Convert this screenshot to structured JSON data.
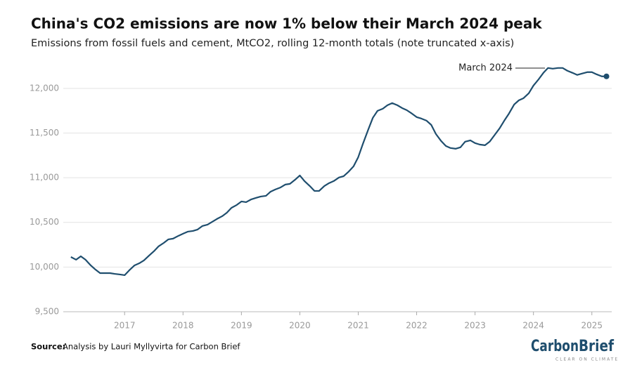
{
  "chart_data": {
    "type": "line",
    "title": "China's CO2 emissions are now 1% below their March 2024 peak",
    "subtitle": "Emissions from fossil fuels and cement, MtCO2, rolling 12-month totals (note truncated x-axis)",
    "annotation": "March 2024",
    "source_label": "Source:",
    "source_text": "Analysis by Lauri Myllyvirta for Carbon Brief",
    "logo": {
      "word1": "Carbon",
      "word2": "Brief",
      "tagline": "CLEAR ON CLIMATE"
    },
    "color": "#1f4e6e",
    "grid": true,
    "x": [
      2016.08,
      2016.17,
      2016.25,
      2016.33,
      2016.42,
      2016.5,
      2016.58,
      2016.67,
      2016.75,
      2016.83,
      2016.92,
      2017,
      2017.08,
      2017.17,
      2017.25,
      2017.33,
      2017.42,
      2017.5,
      2017.58,
      2017.67,
      2017.75,
      2017.83,
      2017.92,
      2018,
      2018.08,
      2018.17,
      2018.25,
      2018.33,
      2018.42,
      2018.5,
      2018.58,
      2018.67,
      2018.75,
      2018.83,
      2018.92,
      2019,
      2019.08,
      2019.17,
      2019.25,
      2019.33,
      2019.42,
      2019.5,
      2019.58,
      2019.67,
      2019.75,
      2019.83,
      2019.92,
      2020,
      2020.08,
      2020.17,
      2020.25,
      2020.33,
      2020.42,
      2020.5,
      2020.58,
      2020.67,
      2020.75,
      2020.83,
      2020.92,
      2021,
      2021.08,
      2021.17,
      2021.25,
      2021.33,
      2021.42,
      2021.5,
      2021.58,
      2021.67,
      2021.75,
      2021.83,
      2021.92,
      2022,
      2022.08,
      2022.17,
      2022.25,
      2022.33,
      2022.42,
      2022.5,
      2022.58,
      2022.67,
      2022.75,
      2022.83,
      2022.92,
      2023,
      2023.08,
      2023.17,
      2023.25,
      2023.33,
      2023.42,
      2023.5,
      2023.58,
      2023.67,
      2023.75,
      2023.83,
      2023.92,
      2024,
      2024.08,
      2024.17,
      2024.25,
      2024.33,
      2024.42,
      2024.5,
      2024.58,
      2024.67,
      2024.75,
      2024.83,
      2024.92,
      2025,
      2025.08,
      2025.17,
      2025.25
    ],
    "values": [
      10113,
      10082,
      10121,
      10082,
      10019,
      9972,
      9932,
      9932,
      9932,
      9924,
      9917,
      9909,
      9964,
      10019,
      10042,
      10074,
      10129,
      10176,
      10231,
      10270,
      10310,
      10318,
      10349,
      10373,
      10396,
      10404,
      10420,
      10459,
      10475,
      10506,
      10538,
      10569,
      10608,
      10663,
      10695,
      10734,
      10726,
      10758,
      10774,
      10789,
      10797,
      10844,
      10868,
      10891,
      10923,
      10931,
      10978,
      11025,
      10962,
      10907,
      10852,
      10852,
      10907,
      10939,
      10962,
      11002,
      11017,
      11064,
      11127,
      11230,
      11379,
      11536,
      11670,
      11748,
      11772,
      11811,
      11835,
      11811,
      11780,
      11756,
      11717,
      11678,
      11662,
      11638,
      11591,
      11489,
      11410,
      11355,
      11332,
      11324,
      11340,
      11403,
      11418,
      11387,
      11371,
      11363,
      11403,
      11473,
      11552,
      11638,
      11717,
      11819,
      11866,
      11890,
      11945,
      12031,
      12094,
      12173,
      12228,
      12220,
      12228,
      12228,
      12197,
      12173,
      12150,
      12165,
      12181,
      12181,
      12157,
      12134,
      12134
    ],
    "xlim": [
      2015.95,
      2025.34
    ],
    "xticks": [
      2017,
      2018,
      2019,
      2020,
      2021,
      2022,
      2023,
      2024,
      2025
    ],
    "ylim": [
      9500,
      12250
    ],
    "yticks": [
      {
        "value": 9500,
        "label": "9,500"
      },
      {
        "value": 10000,
        "label": "10,000"
      },
      {
        "value": 10500,
        "label": "10,500"
      },
      {
        "value": 11000,
        "label": "11,000"
      },
      {
        "value": 11500,
        "label": "11,500"
      },
      {
        "value": 12000,
        "label": "12,000"
      }
    ]
  }
}
